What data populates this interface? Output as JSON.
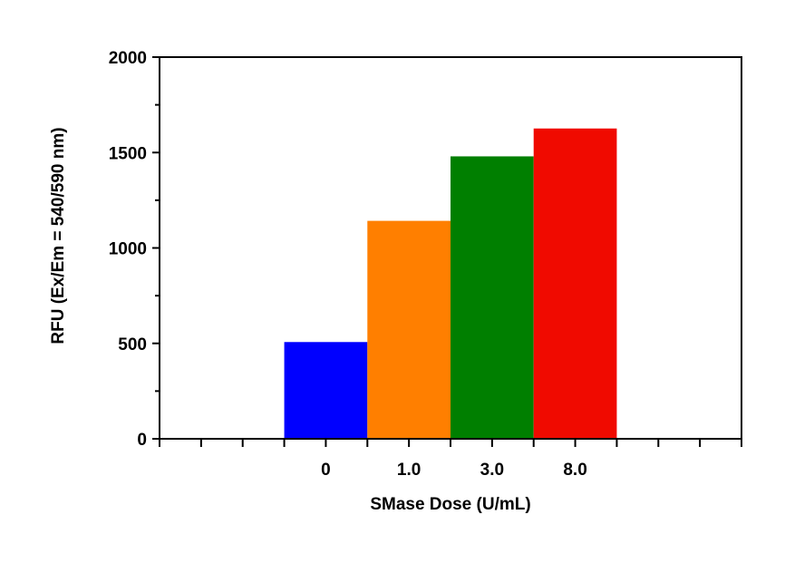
{
  "chart_data": {
    "type": "bar",
    "title": "",
    "xlabel": "SMase Dose (U/mL)",
    "ylabel": "RFU (Ex/Em = 540/590 nm)",
    "categories": [
      "0",
      "1.0",
      "3.0",
      "8.0"
    ],
    "values": [
      507,
      1142,
      1480,
      1626
    ],
    "colors": [
      "#0000FF",
      "#FF7F00",
      "#007F00",
      "#F00A00"
    ],
    "ylim": [
      0,
      2000
    ],
    "yticks": [
      "0",
      "500",
      "1000",
      "1500",
      "2000"
    ],
    "grid": false,
    "legend": "none"
  }
}
